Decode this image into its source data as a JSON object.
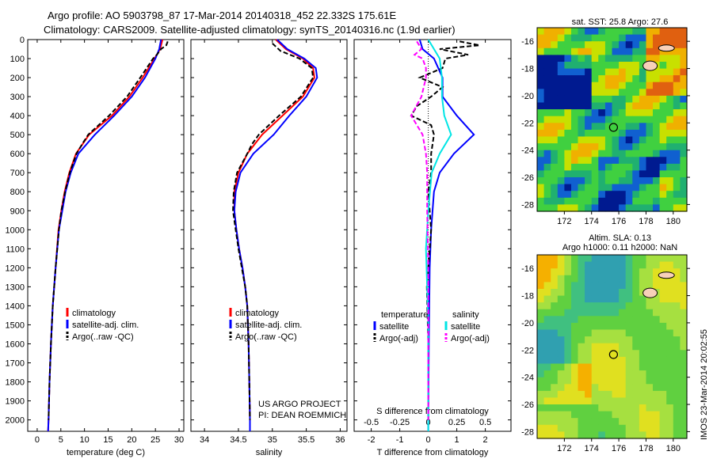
{
  "header": {
    "line1": "Argo profile: AO 5903798_87 17-Mar-2014 20140318_452 22.332S 175.61E",
    "line2": "Climatology: CARS2009. Satellite-adjusted climatology: synTS_20140316.nc (1.9d earlier)"
  },
  "colors": {
    "climatology": "#ff0000",
    "satellite": "#0000ff",
    "argo": "#000000",
    "temp_satellite": "#0000ff",
    "salt_satellite": "#00e5e5",
    "salt_argo": "#ff00ff"
  },
  "depth_ticks": [
    "0",
    "100",
    "200",
    "300",
    "400",
    "500",
    "600",
    "700",
    "800",
    "900",
    "1000",
    "1100",
    "1200",
    "1300",
    "1400",
    "1500",
    "1600",
    "1700",
    "1800",
    "1900",
    "2000"
  ],
  "chart_data": [
    {
      "type": "line",
      "xlabel": "temperature (deg C)",
      "ylabel": "",
      "xlim": [
        -2,
        31
      ],
      "ylim": [
        2060,
        0
      ],
      "x_ticks": [
        "0",
        "5",
        "10",
        "15",
        "20",
        "25",
        "30"
      ],
      "legend": [
        "climatology",
        "satellite-adj. clim.",
        "Argo(..raw -QC)"
      ],
      "series": [
        {
          "name": "climatology",
          "depth": [
            0,
            50,
            100,
            200,
            300,
            400,
            500,
            600,
            700,
            800,
            900,
            1000,
            1200,
            1400,
            1600,
            1800,
            2000,
            2060
          ],
          "values": [
            26.5,
            26,
            24.8,
            22.3,
            19.5,
            15.8,
            11,
            8.2,
            6.8,
            5.8,
            5.1,
            4.5,
            3.9,
            3.3,
            2.9,
            2.6,
            2.4,
            2.3
          ]
        },
        {
          "name": "satellite-adj. clim.",
          "depth": [
            0,
            50,
            100,
            200,
            300,
            400,
            500,
            600,
            700,
            800,
            900,
            1000,
            1200,
            1400,
            1600,
            1800,
            2000,
            2060
          ],
          "values": [
            26.2,
            25.8,
            25,
            22.8,
            20,
            16.3,
            12.2,
            8.7,
            7.1,
            6,
            5.3,
            4.6,
            3.9,
            3.3,
            2.9,
            2.6,
            2.4,
            2.3
          ]
        },
        {
          "name": "Argo(..raw -QC)",
          "depth": [
            10,
            30,
            50,
            80,
            100,
            200,
            300,
            400,
            500,
            550,
            600,
            700,
            800,
            900,
            1000,
            1200,
            1400,
            1600,
            1800,
            2000
          ],
          "values": [
            27.6,
            27.3,
            26.2,
            25.3,
            24.5,
            21.8,
            19,
            15.2,
            10.8,
            9.5,
            8.3,
            6.9,
            5.9,
            5.1,
            4.6,
            3.9,
            3.3,
            2.9,
            2.6,
            2.4
          ]
        }
      ]
    },
    {
      "type": "line",
      "xlabel": "salinity",
      "ylabel": "",
      "xlim": [
        33.8,
        36.1
      ],
      "ylim": [
        2060,
        0
      ],
      "x_ticks": [
        "34",
        "34.5",
        "35",
        "35.5",
        "36"
      ],
      "legend": [
        "climatology",
        "satellite-adj. clim.",
        "Argo(..raw -QC)"
      ],
      "annotation": [
        "US ARGO PROJECT",
        "PI: DEAN ROEMMICH"
      ],
      "series": [
        {
          "name": "climatology",
          "depth": [
            0,
            50,
            100,
            150,
            200,
            300,
            400,
            500,
            600,
            700,
            800,
            900,
            1000,
            1100,
            1200,
            1300,
            1400,
            1600,
            1800,
            2000,
            2060
          ],
          "values": [
            35.05,
            35.2,
            35.45,
            35.6,
            35.62,
            35.45,
            35.15,
            34.85,
            34.63,
            34.5,
            34.44,
            34.44,
            34.47,
            34.51,
            34.56,
            34.6,
            34.63,
            34.65,
            34.66,
            34.67,
            34.67
          ]
        },
        {
          "name": "satellite-adj. clim.",
          "depth": [
            0,
            50,
            100,
            150,
            200,
            300,
            400,
            500,
            600,
            700,
            800,
            900,
            1000,
            1100,
            1200,
            1300,
            1400,
            1600,
            1800,
            2000,
            2060
          ],
          "values": [
            35.07,
            35.22,
            35.47,
            35.64,
            35.66,
            35.5,
            35.25,
            35.02,
            34.72,
            34.53,
            34.46,
            34.44,
            34.47,
            34.51,
            34.56,
            34.6,
            34.63,
            34.65,
            34.66,
            34.67,
            34.67
          ]
        },
        {
          "name": "Argo(..raw -QC)",
          "depth": [
            20,
            60,
            100,
            150,
            200,
            300,
            400,
            500,
            550,
            600,
            700,
            800,
            900,
            1000,
            1100,
            1200,
            1300,
            1400,
            1600,
            1800,
            2000
          ],
          "values": [
            35.0,
            35.12,
            35.4,
            35.58,
            35.6,
            35.42,
            35.1,
            34.8,
            34.7,
            34.63,
            34.48,
            34.43,
            34.42,
            34.46,
            34.5,
            34.55,
            34.6,
            34.63,
            34.65,
            34.66,
            34.67
          ]
        }
      ]
    },
    {
      "type": "line",
      "xlabel": "T difference from climatology",
      "x2label": "S difference from climatology",
      "xlim": [
        -2.6,
        2.9
      ],
      "ylim": [
        2060,
        0
      ],
      "x_ticks": [
        "-2",
        "-1",
        "0",
        "1",
        "2"
      ],
      "x2_ticks": [
        "-0.5",
        "-0.25",
        "0",
        "0.25",
        "0.5"
      ],
      "legend_groups": [
        {
          "title": "temperature",
          "items": [
            "satellite",
            "Argo(-adj)"
          ]
        },
        {
          "title": "salinity",
          "items": [
            "satellite",
            "Argo(-adj)"
          ]
        }
      ],
      "series": [
        {
          "name": "temperature satellite",
          "depth": [
            0,
            50,
            100,
            200,
            300,
            400,
            500,
            600,
            700,
            800,
            1000,
            1200,
            1600,
            2000,
            2060
          ],
          "values": [
            -0.3,
            -0.2,
            0.2,
            0.5,
            0.5,
            1.0,
            1.6,
            0.9,
            0.4,
            0.2,
            0.1,
            0.05,
            0.02,
            0,
            0
          ]
        },
        {
          "name": "temperature Argo(-adj)",
          "depth": [
            10,
            30,
            50,
            80,
            100,
            150,
            200,
            250,
            300,
            350,
            400,
            450,
            500,
            600,
            700,
            800,
            1000,
            1300,
            1600,
            2000
          ],
          "values": [
            1.1,
            1.8,
            0.4,
            1.4,
            0.6,
            0.5,
            -0.3,
            0.5,
            0.1,
            -0.4,
            -0.6,
            0.1,
            0.2,
            0.1,
            0.1,
            0,
            0.1,
            -0.05,
            0,
            0
          ]
        },
        {
          "name": "salinity satellite",
          "depth": [
            0,
            50,
            100,
            200,
            300,
            400,
            500,
            600,
            700,
            900,
            1100,
            1300,
            1500,
            2000,
            2060
          ],
          "values": [
            0.0,
            0.05,
            0.1,
            0.12,
            0.12,
            0.14,
            0.2,
            0.1,
            0.03,
            0.0,
            -0.02,
            -0.01,
            0,
            0,
            0
          ]
        },
        {
          "name": "salinity Argo(-adj)",
          "depth": [
            10,
            50,
            80,
            100,
            150,
            200,
            300,
            400,
            500,
            600,
            700,
            900,
            1200,
            1600,
            2000
          ],
          "values": [
            -0.1,
            -0.06,
            -0.12,
            -0.05,
            -0.02,
            -0.02,
            -0.06,
            -0.15,
            -0.05,
            -0.02,
            -0.01,
            -0.01,
            0,
            0,
            0
          ]
        }
      ]
    },
    {
      "type": "heatmap",
      "title": "sat. SST: 25.8 Argo: 27.6",
      "xlim": [
        170,
        181
      ],
      "ylim": [
        -28.5,
        -15
      ],
      "x_ticks": [
        "172",
        "174",
        "176",
        "178",
        "180"
      ],
      "y_ticks": [
        "-16",
        "-18",
        "-20",
        "-22",
        "-24",
        "-26",
        "-28"
      ],
      "marker": {
        "lon": 175.61,
        "lat": -22.33
      }
    },
    {
      "type": "heatmap",
      "title": "Altim. SLA: 0.13",
      "subtitle": "Argo h1000: 0.11 h2000: NaN",
      "xlim": [
        170,
        181
      ],
      "ylim": [
        -28.5,
        -15
      ],
      "x_ticks": [
        "172",
        "174",
        "176",
        "178",
        "180"
      ],
      "y_ticks": [
        "-16",
        "-18",
        "-20",
        "-22",
        "-24",
        "-26",
        "-28"
      ],
      "marker": {
        "lon": 175.61,
        "lat": -22.33
      }
    }
  ],
  "footer_stamp": "IMOS 23-Mar-2014 20:02:55"
}
